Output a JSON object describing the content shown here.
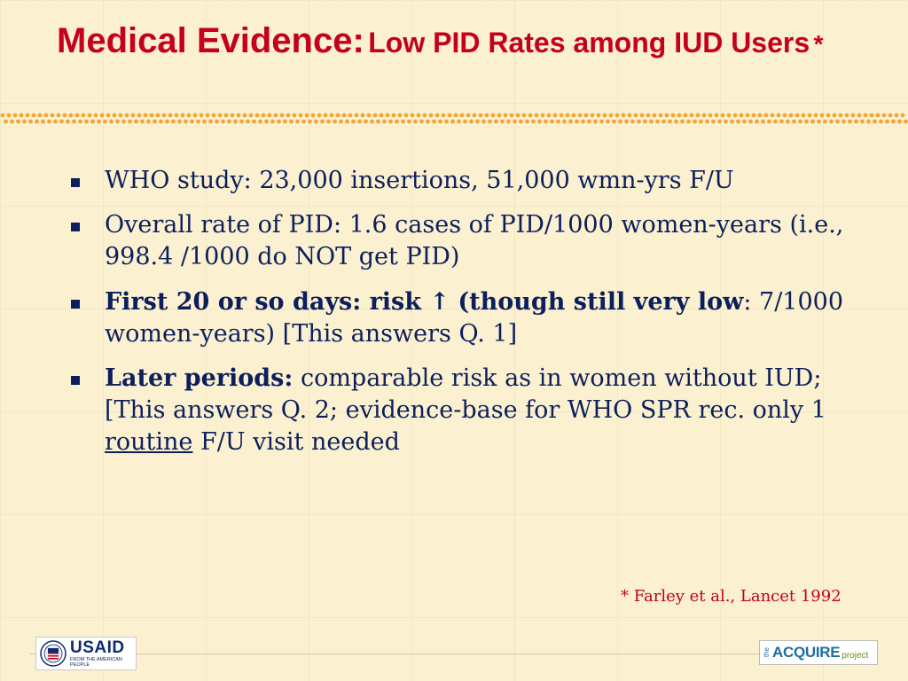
{
  "title": {
    "main": "Medical Evidence:",
    "sub": "Low PID Rates among IUD Users",
    "star": "*"
  },
  "bullets": [
    {
      "text": "WHO study: 23,000 insertions, 51,000 wmn-yrs F/U"
    },
    {
      "text": "Overall rate of PID: 1.6 cases of PID/1000 women-years (i.e., 998.4 /1000 do NOT get PID)"
    },
    {
      "bold": "First 20 or so days: risk ↑ (though still very low",
      "rest": ": 7/1000 women-years) [This answers Q. 1]"
    },
    {
      "bold": "Later periods:",
      "rest_a": " comparable risk as in women without IUD; [This answers Q. 2; evidence-base for WHO SPR rec. only 1 ",
      "underline": "routine",
      "rest_b": " F/U visit needed"
    }
  ],
  "footnote": "* Farley et al., Lancet 1992",
  "logos": {
    "usaid_name": "USAID",
    "usaid_tag": "FROM THE AMERICAN PEOPLE",
    "acquire_the": "the",
    "acquire_name": "ACQUIRE",
    "acquire_project": "project"
  },
  "colors": {
    "title": "#c4001c",
    "body_text": "#0b1f5c",
    "background": "#fbf0cf",
    "dots": "#f0a73a"
  }
}
